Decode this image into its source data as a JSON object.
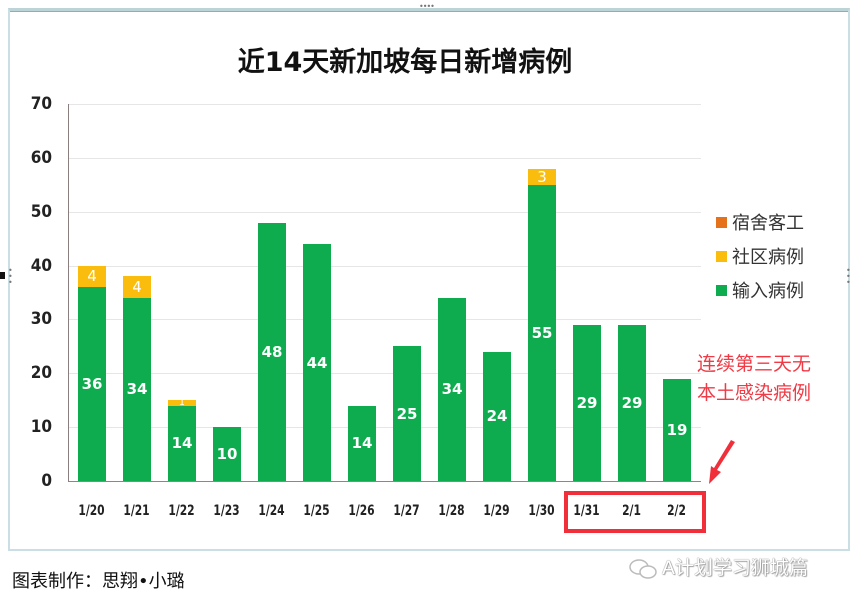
{
  "chart_data": {
    "type": "bar",
    "stacked": true,
    "title": "近14天新加坡每日新增病例",
    "xlabel": "",
    "ylabel": "",
    "ylim": [
      0,
      70
    ],
    "yticks": [
      0,
      10,
      20,
      30,
      40,
      50,
      60,
      70
    ],
    "grid": true,
    "legend_position": "right",
    "categories": [
      "1/20",
      "1/21",
      "1/22",
      "1/23",
      "1/24",
      "1/25",
      "1/26",
      "1/27",
      "1/28",
      "1/29",
      "1/30",
      "1/31",
      "2/1",
      "2/2"
    ],
    "series": [
      {
        "name": "输入病例",
        "color": "#0eac4e",
        "values": [
          36,
          34,
          14,
          10,
          48,
          44,
          14,
          25,
          34,
          24,
          55,
          29,
          29,
          19
        ]
      },
      {
        "name": "社区病例",
        "color": "#fbbd0d",
        "values": [
          4,
          4,
          1,
          0,
          0,
          0,
          0,
          0,
          0,
          0,
          3,
          0,
          0,
          0
        ]
      },
      {
        "name": "宿舍客工",
        "color": "#e5711b",
        "values": [
          0,
          0,
          0,
          0,
          0,
          0,
          0,
          0,
          0,
          0,
          0,
          0,
          0,
          0
        ]
      }
    ],
    "annotations": [
      {
        "text": "连续第三天无本土感染病例",
        "color": "#f03a45",
        "highlight_categories": [
          "1/31",
          "2/1",
          "2/2"
        ]
      }
    ]
  },
  "chart": {
    "title": "近14天新加坡每日新增病例",
    "legend": [
      {
        "label": "宿舍客工",
        "color": "#e5711b"
      },
      {
        "label": "社区病例",
        "color": "#fbbd0d"
      },
      {
        "label": "输入病例",
        "color": "#0eac4e"
      }
    ],
    "note_line1": "连续第三天无",
    "note_line2": "本土感染病例"
  },
  "footer": {
    "credit": "图表制作：思翔•小璐",
    "watermark": "A计划学习狮城篇"
  }
}
